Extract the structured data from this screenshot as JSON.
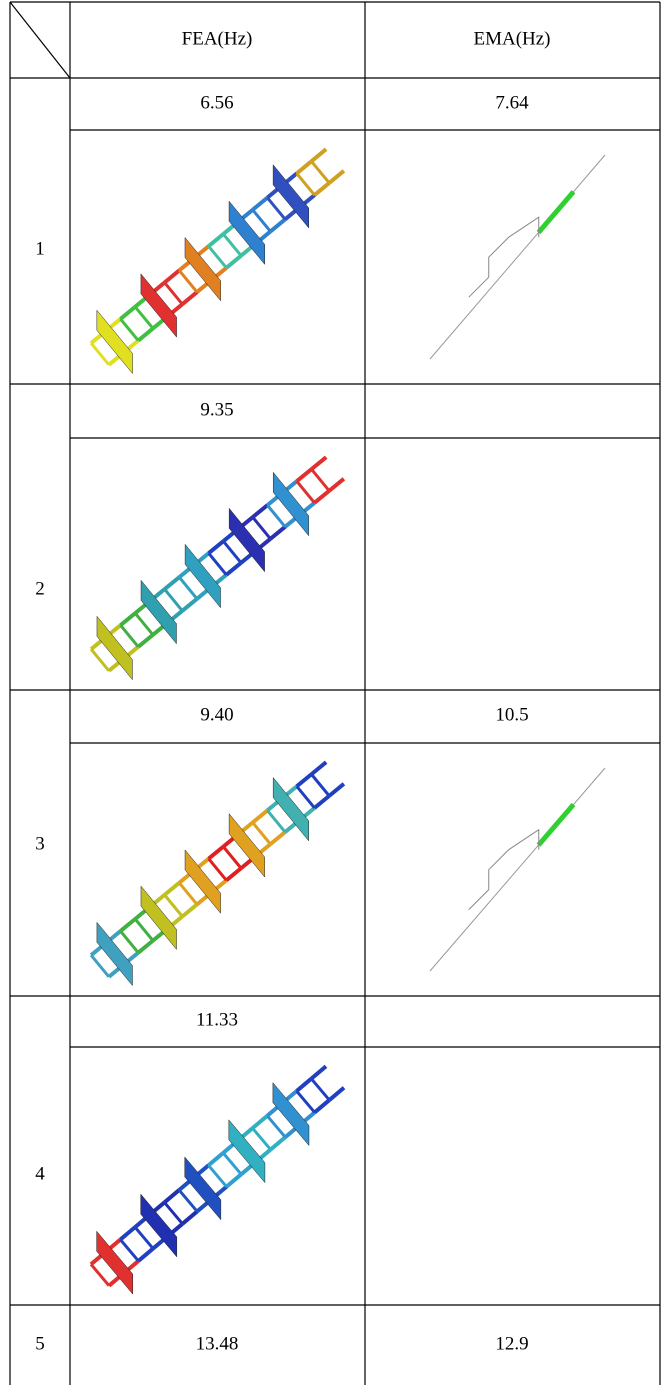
{
  "table": {
    "header": [
      "FEA(Hz)",
      "EMA(Hz)"
    ],
    "rows": [
      {
        "mode": "1",
        "fea": "6.56",
        "ema": "7.64"
      },
      {
        "mode": "2",
        "fea": "9.35",
        "ema": null
      },
      {
        "mode": "3",
        "fea": "9.40",
        "ema": "10.5"
      },
      {
        "mode": "4",
        "fea": "11.33",
        "ema": null
      },
      {
        "mode": "5",
        "fea": "13.48",
        "ema": "12.9"
      }
    ]
  }
}
